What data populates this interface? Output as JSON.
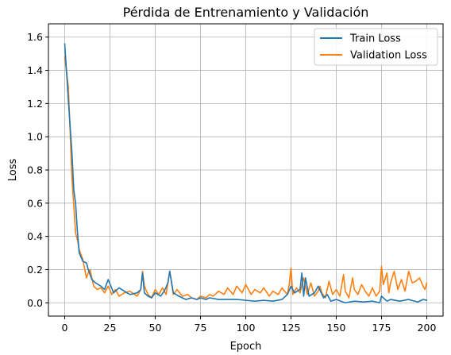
{
  "chart_data": {
    "type": "line",
    "title": "Pérdida de Entrenamiento y Validación",
    "xlabel": "Epoch",
    "ylabel": "Loss",
    "xlim": [
      -9,
      209
    ],
    "ylim": [
      -0.08,
      1.68
    ],
    "xticks": [
      0,
      25,
      50,
      75,
      100,
      125,
      150,
      175,
      200
    ],
    "yticks": [
      0.0,
      0.2,
      0.4,
      0.6,
      0.8,
      1.0,
      1.2,
      1.4,
      1.6
    ],
    "grid": true,
    "legend_position": "top-right",
    "series": [
      {
        "name": "Train Loss",
        "color": "#1f77b4",
        "x": [
          0,
          2,
          4,
          5,
          6,
          7,
          8,
          10,
          12,
          13,
          15,
          17,
          20,
          22,
          24,
          27,
          30,
          33,
          36,
          40,
          42,
          43,
          44,
          46,
          48,
          50,
          53,
          55,
          57,
          58,
          60,
          63,
          65,
          67,
          70,
          73,
          75,
          78,
          80,
          85,
          90,
          95,
          100,
          105,
          110,
          115,
          120,
          123,
          125,
          127,
          130,
          131,
          132,
          133,
          135,
          138,
          140,
          143,
          145,
          147,
          150,
          155,
          160,
          165,
          170,
          174,
          175,
          178,
          180,
          185,
          190,
          195,
          198,
          200
        ],
        "y": [
          1.56,
          1.22,
          0.9,
          0.68,
          0.6,
          0.43,
          0.3,
          0.25,
          0.24,
          0.2,
          0.14,
          0.12,
          0.1,
          0.08,
          0.14,
          0.06,
          0.09,
          0.07,
          0.05,
          0.06,
          0.08,
          0.18,
          0.06,
          0.04,
          0.03,
          0.06,
          0.04,
          0.07,
          0.12,
          0.19,
          0.06,
          0.04,
          0.03,
          0.02,
          0.03,
          0.02,
          0.03,
          0.02,
          0.03,
          0.02,
          0.02,
          0.02,
          0.015,
          0.01,
          0.015,
          0.01,
          0.02,
          0.05,
          0.1,
          0.06,
          0.08,
          0.18,
          0.04,
          0.15,
          0.04,
          0.06,
          0.1,
          0.03,
          0.05,
          0.01,
          0.02,
          0.0,
          0.01,
          0.005,
          0.01,
          0.0,
          0.04,
          0.01,
          0.02,
          0.01,
          0.02,
          0.005,
          0.02,
          0.015
        ]
      },
      {
        "name": "Validation Loss",
        "color": "#ff7f0e",
        "x": [
          0,
          2,
          4,
          6,
          7,
          8,
          10,
          12,
          13,
          14,
          16,
          18,
          20,
          22,
          24,
          26,
          28,
          30,
          33,
          36,
          40,
          42,
          43,
          44,
          46,
          48,
          50,
          52,
          54,
          56,
          57,
          58,
          60,
          62,
          65,
          68,
          70,
          73,
          75,
          78,
          80,
          82,
          85,
          88,
          90,
          93,
          95,
          98,
          100,
          103,
          105,
          108,
          110,
          113,
          115,
          118,
          120,
          123,
          124,
          125,
          126,
          128,
          130,
          132,
          134,
          136,
          138,
          140,
          141,
          142,
          144,
          146,
          148,
          150,
          152,
          154,
          155,
          157,
          159,
          160,
          162,
          164,
          166,
          168,
          170,
          172,
          174,
          175,
          176,
          178,
          179,
          180,
          182,
          184,
          186,
          188,
          190,
          192,
          194,
          196,
          198,
          199,
          200
        ],
        "y": [
          1.48,
          1.3,
          0.75,
          0.42,
          0.38,
          0.32,
          0.26,
          0.15,
          0.18,
          0.2,
          0.1,
          0.08,
          0.09,
          0.06,
          0.1,
          0.05,
          0.08,
          0.04,
          0.06,
          0.07,
          0.04,
          0.08,
          0.19,
          0.1,
          0.05,
          0.03,
          0.08,
          0.05,
          0.09,
          0.05,
          0.12,
          0.19,
          0.05,
          0.08,
          0.04,
          0.05,
          0.03,
          0.02,
          0.04,
          0.03,
          0.05,
          0.04,
          0.07,
          0.05,
          0.09,
          0.05,
          0.1,
          0.06,
          0.11,
          0.05,
          0.08,
          0.06,
          0.09,
          0.04,
          0.07,
          0.05,
          0.09,
          0.05,
          0.11,
          0.21,
          0.05,
          0.09,
          0.06,
          0.15,
          0.05,
          0.12,
          0.04,
          0.07,
          0.1,
          0.06,
          0.03,
          0.13,
          0.05,
          0.08,
          0.04,
          0.17,
          0.07,
          0.03,
          0.15,
          0.08,
          0.05,
          0.11,
          0.07,
          0.04,
          0.09,
          0.04,
          0.07,
          0.22,
          0.11,
          0.18,
          0.06,
          0.12,
          0.19,
          0.08,
          0.14,
          0.07,
          0.19,
          0.12,
          0.13,
          0.15,
          0.1,
          0.08,
          0.12
        ]
      }
    ]
  }
}
